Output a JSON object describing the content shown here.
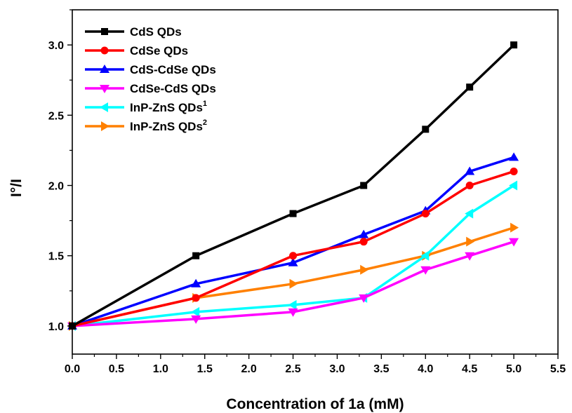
{
  "chart_data": {
    "type": "line",
    "title": "",
    "xlabel": "Concentration of 1a (mM)",
    "ylabel": "I°/I",
    "xlim": [
      0.0,
      5.5
    ],
    "ylim": [
      0.8,
      3.25
    ],
    "xticks": [
      "0.0",
      "0.5",
      "1.0",
      "1.5",
      "2.0",
      "2.5",
      "3.0",
      "3.5",
      "4.0",
      "4.5",
      "5.0",
      "5.5"
    ],
    "yticks": [
      "1.0",
      "1.5",
      "2.0",
      "2.5",
      "3.0"
    ],
    "grid": false,
    "legend_position": "top-left",
    "x": [
      0.0,
      1.4,
      2.5,
      3.3,
      4.0,
      4.5,
      5.0
    ],
    "series": [
      {
        "name": "CdS QDs",
        "sup": "",
        "color": "#000000",
        "marker": "square",
        "values": [
          1.0,
          1.5,
          1.8,
          2.0,
          2.4,
          2.7,
          3.0
        ]
      },
      {
        "name": "CdSe QDs",
        "sup": "",
        "color": "#ff0000",
        "marker": "circle",
        "values": [
          1.0,
          1.2,
          1.5,
          1.6,
          1.8,
          2.0,
          2.1
        ]
      },
      {
        "name": "CdS-CdSe QDs",
        "sup": "",
        "color": "#0000ff",
        "marker": "triangle-up",
        "values": [
          1.0,
          1.3,
          1.45,
          1.65,
          1.82,
          2.1,
          2.2
        ]
      },
      {
        "name": "CdSe-CdS QDs",
        "sup": "",
        "color": "#ff00ff",
        "marker": "triangle-down",
        "values": [
          1.0,
          1.05,
          1.1,
          1.2,
          1.4,
          1.5,
          1.6
        ]
      },
      {
        "name": "InP-ZnS QDs",
        "sup": "1",
        "color": "#00ffff",
        "marker": "triangle-left",
        "values": [
          1.0,
          1.1,
          1.15,
          1.2,
          1.5,
          1.8,
          2.0
        ]
      },
      {
        "name": "InP-ZnS QDs",
        "sup": "2",
        "color": "#ff8000",
        "marker": "triangle-right",
        "values": [
          1.0,
          1.2,
          1.3,
          1.4,
          1.5,
          1.6,
          1.7
        ]
      }
    ]
  }
}
